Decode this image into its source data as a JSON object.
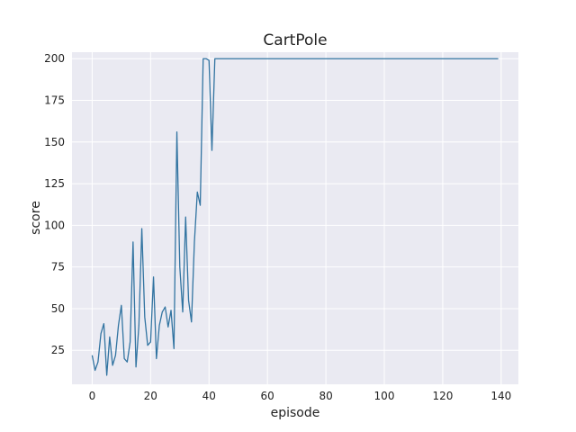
{
  "chart_data": {
    "type": "line",
    "title": "CartPole",
    "xlabel": "episode",
    "ylabel": "score",
    "xlim": [
      -6.9,
      145.9
    ],
    "ylim": [
      4.6,
      203.9
    ],
    "xticks": [
      0,
      20,
      40,
      60,
      80,
      100,
      120,
      140
    ],
    "yticks": [
      25,
      50,
      75,
      100,
      125,
      150,
      175,
      200
    ],
    "grid": true,
    "background": "#eaeaf2",
    "line_color": "#3274a1",
    "series": [
      {
        "name": "",
        "x": [
          0,
          1,
          2,
          3,
          4,
          5,
          6,
          7,
          8,
          9,
          10,
          11,
          12,
          13,
          14,
          15,
          16,
          17,
          18,
          19,
          20,
          21,
          22,
          23,
          24,
          25,
          26,
          27,
          28,
          29,
          30,
          31,
          32,
          33,
          34,
          35,
          36,
          37,
          38,
          39,
          40,
          41,
          42,
          43,
          44,
          45,
          46,
          47,
          48,
          49,
          50,
          51,
          52,
          53,
          54,
          55,
          56,
          57,
          58,
          59,
          60,
          61,
          62,
          63,
          64,
          65,
          66,
          67,
          68,
          69,
          70,
          71,
          72,
          73,
          74,
          75,
          76,
          77,
          78,
          79,
          80,
          81,
          82,
          83,
          84,
          85,
          86,
          87,
          88,
          89,
          90,
          91,
          92,
          93,
          94,
          95,
          96,
          97,
          98,
          99,
          100,
          101,
          102,
          103,
          104,
          105,
          106,
          107,
          108,
          109,
          110,
          111,
          112,
          113,
          114,
          115,
          116,
          117,
          118,
          119,
          120,
          121,
          122,
          123,
          124,
          125,
          126,
          127,
          128,
          129,
          130,
          131,
          132,
          133,
          134,
          135,
          136,
          137,
          138,
          139
        ],
        "y": [
          22,
          13,
          18,
          35,
          41,
          10,
          33,
          16,
          22,
          40,
          52,
          20,
          18,
          30,
          90,
          15,
          40,
          98,
          45,
          28,
          30,
          69,
          20,
          40,
          48,
          51,
          39,
          49,
          26,
          156,
          75,
          48,
          105,
          55,
          42,
          90,
          120,
          112,
          200,
          200,
          199,
          145,
          200,
          200,
          200,
          200,
          200,
          200,
          200,
          200,
          200,
          200,
          200,
          200,
          200,
          200,
          200,
          200,
          200,
          200,
          200,
          200,
          200,
          200,
          200,
          200,
          200,
          200,
          200,
          200,
          200,
          200,
          200,
          200,
          200,
          200,
          200,
          200,
          200,
          200,
          200,
          200,
          200,
          200,
          200,
          200,
          200,
          200,
          200,
          200,
          200,
          200,
          200,
          200,
          200,
          200,
          200,
          200,
          200,
          200,
          200,
          200,
          200,
          200,
          200,
          200,
          200,
          200,
          200,
          200,
          200,
          200,
          200,
          200,
          200,
          200,
          200,
          200,
          200,
          200,
          200,
          200,
          200,
          200,
          200,
          200,
          200,
          200,
          200,
          200,
          200,
          200,
          200,
          200,
          200,
          200,
          200,
          200,
          200,
          200
        ]
      }
    ]
  }
}
